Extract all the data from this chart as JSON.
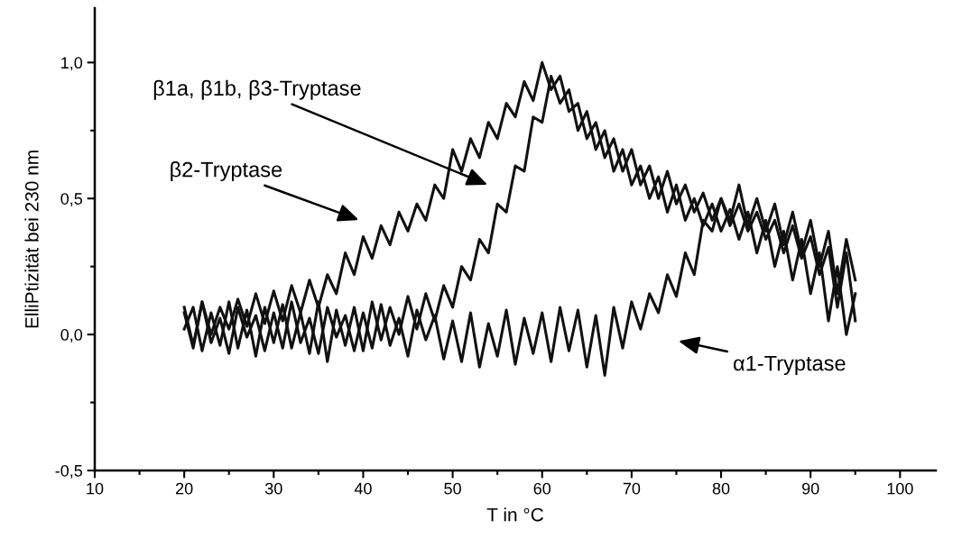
{
  "chart_data": {
    "type": "line",
    "xlabel": "T in °C",
    "ylabel": "ElliPtizität bei 230 nm",
    "x": [
      20,
      21,
      22,
      23,
      24,
      25,
      26,
      27,
      28,
      29,
      30,
      31,
      32,
      33,
      34,
      35,
      36,
      37,
      38,
      39,
      40,
      41,
      42,
      43,
      44,
      45,
      46,
      47,
      48,
      49,
      50,
      51,
      52,
      53,
      54,
      55,
      56,
      57,
      58,
      59,
      60,
      61,
      62,
      63,
      64,
      65,
      66,
      67,
      68,
      69,
      70,
      71,
      72,
      73,
      74,
      75,
      76,
      77,
      78,
      79,
      80,
      81,
      82,
      83,
      84,
      85,
      86,
      87,
      88,
      89,
      90,
      91,
      92,
      93,
      94,
      95
    ],
    "series": [
      {
        "color": "#111111",
        "values": [
          0.08,
          -0.05,
          0.12,
          -0.03,
          0.06,
          -0.07,
          0.1,
          -0.01,
          0.07,
          -0.06,
          0.08,
          -0.05,
          0.12,
          -0.03,
          0.06,
          -0.07,
          0.1,
          -0.01,
          0.07,
          -0.06,
          0.08,
          -0.05,
          0.11,
          -0.04,
          0.06,
          -0.08,
          0.09,
          -0.02,
          0.07,
          -0.09,
          0.05,
          -0.1,
          0.08,
          -0.12,
          0.04,
          -0.08,
          0.09,
          -0.11,
          0.06,
          -0.07,
          0.08,
          -0.1,
          0.1,
          -0.06,
          0.09,
          -0.12,
          0.07,
          -0.15,
          0.1,
          -0.05,
          0.12,
          0.02,
          0.15,
          0.08,
          0.22,
          0.14,
          0.3,
          0.22,
          0.42,
          0.38,
          0.5,
          0.42,
          0.55,
          0.4,
          0.5,
          0.38,
          0.48,
          0.33,
          0.45,
          0.3,
          0.42,
          0.25,
          0.38,
          0.15,
          0.35,
          0.2
        ]
      },
      {
        "color": "#111111",
        "values": [
          0.1,
          -0.04,
          0.12,
          0.0,
          0.1,
          0.02,
          0.13,
          0.03,
          0.15,
          0.04,
          0.16,
          0.05,
          0.18,
          0.08,
          0.2,
          0.1,
          0.22,
          0.15,
          0.3,
          0.22,
          0.36,
          0.28,
          0.4,
          0.33,
          0.45,
          0.38,
          0.48,
          0.42,
          0.55,
          0.5,
          0.68,
          0.6,
          0.72,
          0.65,
          0.78,
          0.72,
          0.85,
          0.8,
          0.93,
          0.86,
          1.0,
          0.9,
          0.95,
          0.82,
          0.85,
          0.72,
          0.78,
          0.65,
          0.72,
          0.6,
          0.68,
          0.55,
          0.62,
          0.5,
          0.6,
          0.48,
          0.55,
          0.45,
          0.52,
          0.42,
          0.5,
          0.4,
          0.48,
          0.38,
          0.45,
          0.35,
          0.42,
          0.3,
          0.4,
          0.28,
          0.36,
          0.22,
          0.32,
          0.1,
          0.3,
          0.05
        ]
      },
      {
        "color": "#111111",
        "values": [
          0.02,
          0.1,
          -0.06,
          0.08,
          -0.04,
          0.12,
          -0.05,
          0.09,
          -0.08,
          0.1,
          -0.03,
          0.11,
          -0.05,
          0.08,
          -0.07,
          0.12,
          -0.1,
          0.09,
          -0.04,
          0.1,
          -0.06,
          0.12,
          -0.02,
          0.1,
          0.0,
          0.14,
          0.02,
          0.15,
          0.05,
          0.18,
          0.1,
          0.25,
          0.2,
          0.35,
          0.3,
          0.48,
          0.45,
          0.62,
          0.6,
          0.8,
          0.78,
          0.95,
          0.85,
          0.9,
          0.75,
          0.82,
          0.68,
          0.75,
          0.6,
          0.68,
          0.55,
          0.62,
          0.5,
          0.58,
          0.45,
          0.55,
          0.42,
          0.5,
          0.4,
          0.48,
          0.38,
          0.46,
          0.35,
          0.45,
          0.3,
          0.42,
          0.25,
          0.38,
          0.2,
          0.35,
          0.15,
          0.3,
          0.05,
          0.25,
          0.0,
          0.15
        ]
      }
    ],
    "xlim": [
      10,
      104
    ],
    "xticks": [
      10,
      20,
      30,
      40,
      50,
      60,
      70,
      80,
      90,
      100
    ],
    "ylim": [
      -0.5,
      1.2
    ],
    "yticks": [
      {
        "value": -0.5,
        "label": "-0,5"
      },
      {
        "value": 0.0,
        "label": "0,0"
      },
      {
        "value": 0.5,
        "label": "0,5"
      },
      {
        "value": 1.0,
        "label": "1,0"
      }
    ],
    "grid": false,
    "legend": false,
    "marker": "none",
    "line_style": "solid",
    "annotations": [
      "β1a, β1b, β3-Tryptase",
      "β2-Tryptase",
      "α1-Tryptase"
    ]
  }
}
